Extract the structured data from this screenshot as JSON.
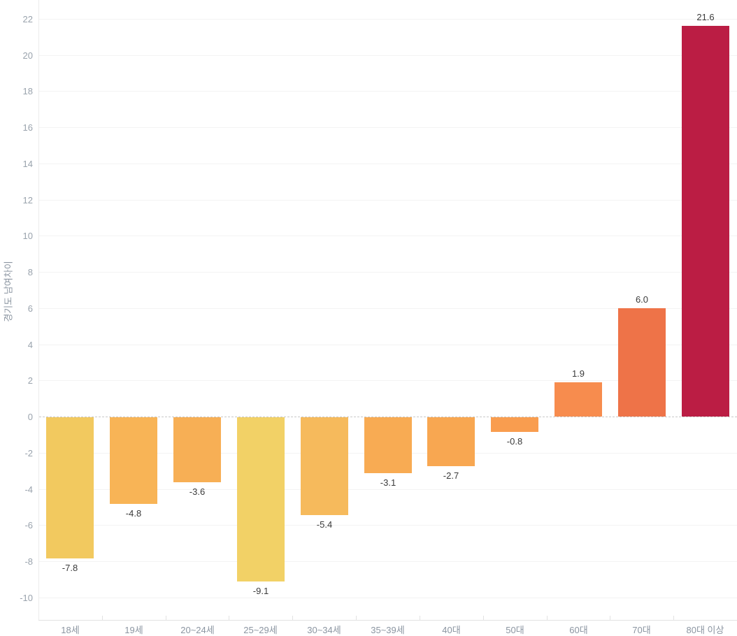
{
  "chart_data": {
    "type": "bar",
    "title": "",
    "xlabel": "",
    "ylabel": "경기도 남여차이",
    "categories": [
      "18세",
      "19세",
      "20~24세",
      "25~29세",
      "30~34세",
      "35~39세",
      "40대",
      "50대",
      "60대",
      "70대",
      "80대 이상"
    ],
    "values": [
      -7.8,
      -4.8,
      -3.6,
      -9.1,
      -5.4,
      -3.1,
      -2.7,
      -0.8,
      1.9,
      6.0,
      21.6
    ],
    "value_labels": [
      "-7.8",
      "-4.8",
      "-3.6",
      "-9.1",
      "-5.4",
      "-3.1",
      "-2.7",
      "-0.8",
      "1.9",
      "6.0",
      "21.6"
    ],
    "bar_colors": [
      "#f2c95f",
      "#f8b456",
      "#f7af55",
      "#f2d166",
      "#f6ba5c",
      "#f8ab53",
      "#f8a751",
      "#f99d4f",
      "#f78c4e",
      "#ee7348",
      "#bb1d44"
    ],
    "ylim": [
      -10,
      22
    ],
    "yticks": [
      22,
      20,
      18,
      16,
      14,
      12,
      10,
      8,
      6,
      4,
      2,
      0,
      -2,
      -4,
      -6,
      -8,
      -10
    ],
    "grid": true,
    "zero_line": "dashed",
    "legend": "none"
  },
  "colors": {
    "background": "#ffffff",
    "grid": "#f3f3f3",
    "axis_line": "#e2e2e2",
    "zero_line": "#c9c9c9",
    "y_tick_label": "#9aa3ad",
    "x_tick_label": "#8b95a1",
    "value_label": "#3a3a3a",
    "min_bar": "#f2d166",
    "max_bar": "#bb1d44"
  }
}
